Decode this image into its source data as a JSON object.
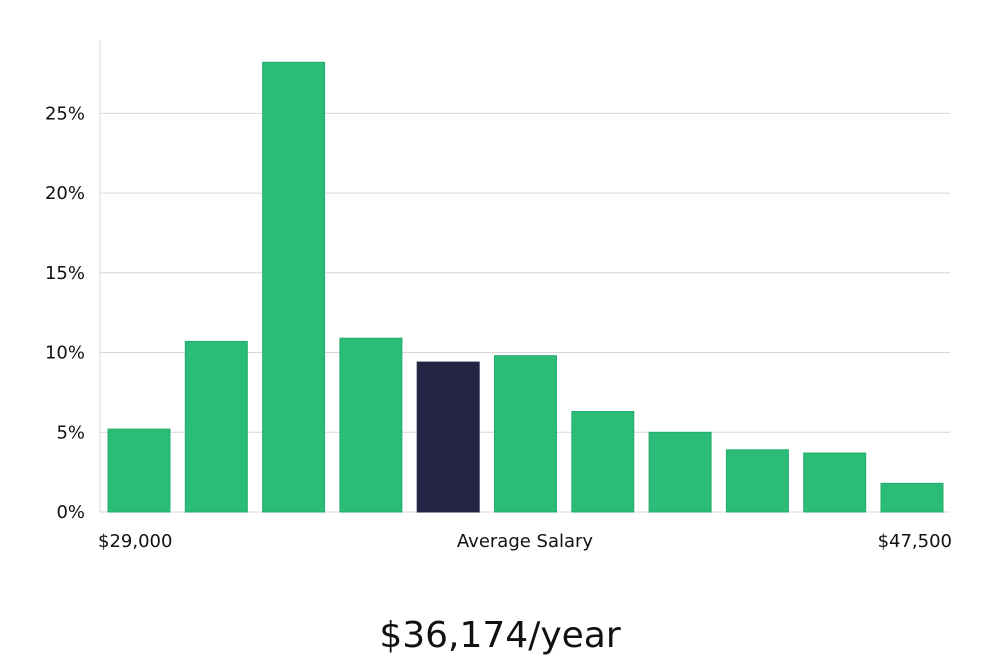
{
  "chart_data": {
    "type": "bar",
    "title": "",
    "xlabel": "Average Salary",
    "ylabel": "",
    "x_min_label": "$29,000",
    "x_max_label": "$47,500",
    "values": [
      5.2,
      10.7,
      28.2,
      10.9,
      9.4,
      9.8,
      6.3,
      5.0,
      3.9,
      3.7,
      1.8
    ],
    "highlight_index": 4,
    "yticks": [
      0,
      5,
      10,
      15,
      20,
      25
    ],
    "ytick_labels": [
      "0%",
      "5%",
      "10%",
      "15%",
      "20%",
      "25%"
    ],
    "ylim": [
      0,
      29.6
    ],
    "grid": true,
    "legend": "none",
    "average_salary_display": "$36,174/year"
  },
  "colors": {
    "bar": "#2bbd78",
    "bar_stroke": "#25ad6d",
    "highlight": "#262444",
    "grid": "#d7d7d7",
    "axis": "#d7d7d7",
    "text": "#111111"
  }
}
